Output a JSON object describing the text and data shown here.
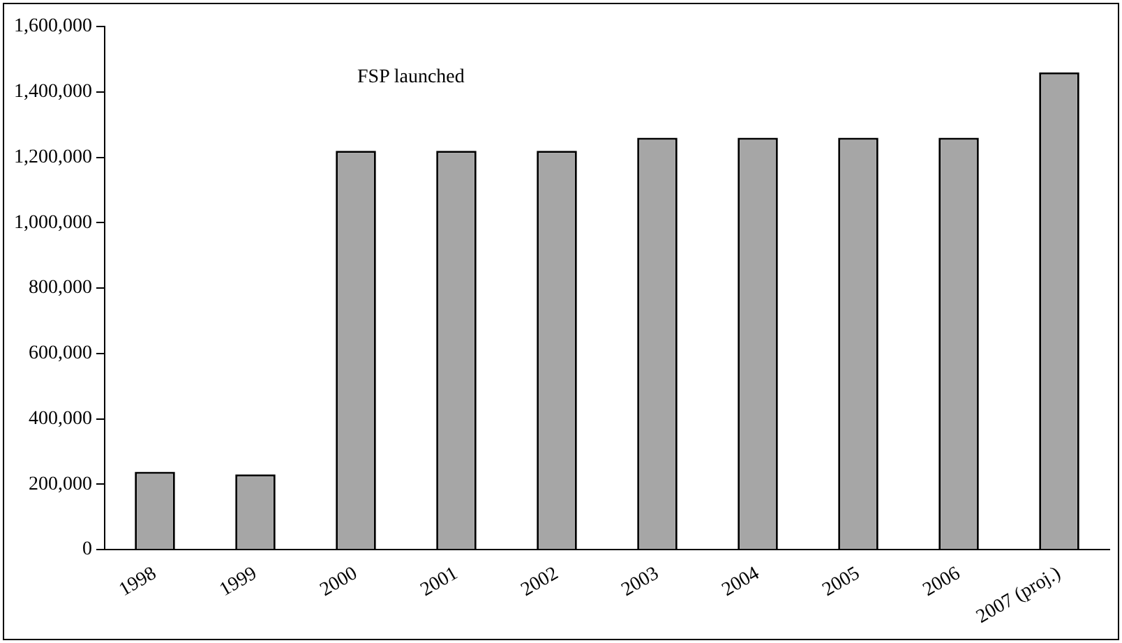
{
  "chart_data": {
    "type": "bar",
    "categories": [
      "1998",
      "1999",
      "2000",
      "2001",
      "2002",
      "2003",
      "2004",
      "2005",
      "2006",
      "2007 (proj.)"
    ],
    "values": [
      238000,
      230000,
      1220000,
      1220000,
      1220000,
      1260000,
      1260000,
      1260000,
      1260000,
      1460000
    ],
    "color": "#a6a6a6",
    "ylim": [
      0,
      1600000
    ],
    "yticks": [
      0,
      {
        "value": 200000,
        "label": "200,000"
      },
      {
        "value": 400000,
        "label": "400,000"
      },
      {
        "value": 600000,
        "label": "600,000"
      },
      {
        "value": 800000,
        "label": "800,000"
      },
      {
        "value": 1000000,
        "label": "1,000,000"
      },
      {
        "value": 1200000,
        "label": "1,200,000"
      },
      {
        "value": 1400000,
        "label": "1,400,000"
      },
      {
        "value": 1600000,
        "label": "1,600,000"
      }
    ],
    "grid": false,
    "legend": false,
    "annotations": [
      "FSP launched"
    ]
  }
}
